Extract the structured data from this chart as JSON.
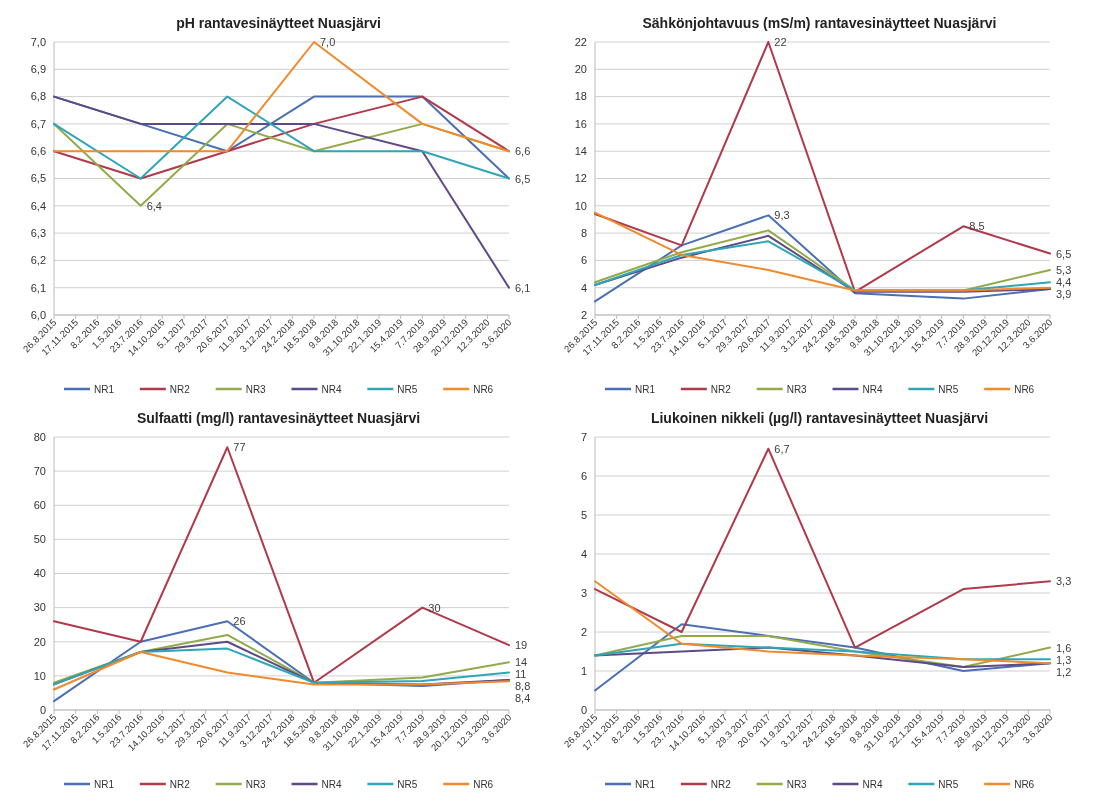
{
  "chart_data": [
    {
      "type": "line",
      "title": "pH rantavesinäytteet Nuasjärvi",
      "x": [
        "2015-08-26",
        "2016-07-23",
        "2017-06-20",
        "2018-05-18",
        "2019-07-07",
        "2020-06-03"
      ],
      "xlim": [
        "2015-08-26",
        "2020-06-03"
      ],
      "xticks": [
        {
          "value": "2015-08-26",
          "label": "26.8.2015"
        },
        {
          "value": "2015-11-17",
          "label": "17.11.2015"
        },
        {
          "value": "2016-02-08",
          "label": "8.2.2016"
        },
        {
          "value": "2016-05-01",
          "label": "1.5.2016"
        },
        {
          "value": "2016-07-23",
          "label": "23.7.2016"
        },
        {
          "value": "2016-10-14",
          "label": "14.10.2016"
        },
        {
          "value": "2017-01-05",
          "label": "5.1.2017"
        },
        {
          "value": "2017-03-29",
          "label": "29.3.2017"
        },
        {
          "value": "2017-06-20",
          "label": "20.6.2017"
        },
        {
          "value": "2017-09-11",
          "label": "11.9.2017"
        },
        {
          "value": "2017-12-03",
          "label": "3.12.2017"
        },
        {
          "value": "2018-02-24",
          "label": "24.2.2018"
        },
        {
          "value": "2018-05-18",
          "label": "18.5.2018"
        },
        {
          "value": "2018-08-09",
          "label": "9.8.2018"
        },
        {
          "value": "2018-10-31",
          "label": "31.10.2018"
        },
        {
          "value": "2019-01-22",
          "label": "22.1.2019"
        },
        {
          "value": "2019-04-15",
          "label": "15.4.2019"
        },
        {
          "value": "2019-07-07",
          "label": "7.7.2019"
        },
        {
          "value": "2019-09-28",
          "label": "28.9.2019"
        },
        {
          "value": "2019-12-20",
          "label": "20.12.2019"
        },
        {
          "value": "2020-03-12",
          "label": "12.3.2020"
        },
        {
          "value": "2020-06-03",
          "label": "3.6.2020"
        }
      ],
      "ylim": [
        6.0,
        7.0
      ],
      "yticks": [
        {
          "value": 6.0,
          "label": "6,0"
        },
        {
          "value": 6.1,
          "label": "6,1"
        },
        {
          "value": 6.2,
          "label": "6,2"
        },
        {
          "value": 6.3,
          "label": "6,3"
        },
        {
          "value": 6.4,
          "label": "6,4"
        },
        {
          "value": 6.5,
          "label": "6,5"
        },
        {
          "value": 6.6,
          "label": "6,6"
        },
        {
          "value": 6.7,
          "label": "6,7"
        },
        {
          "value": 6.8,
          "label": "6,8"
        },
        {
          "value": 6.9,
          "label": "6,9"
        },
        {
          "value": 7.0,
          "label": "7,0"
        }
      ],
      "grid": "y",
      "legend": "bottom",
      "marker": "none",
      "series": [
        {
          "name": "NR1",
          "color": "#4a6fb5",
          "values": [
            6.8,
            6.7,
            6.6,
            6.8,
            6.8,
            6.5
          ],
          "value_labels": [
            null,
            null,
            null,
            null,
            null,
            "6,5"
          ]
        },
        {
          "name": "NR2",
          "color": "#b0394a",
          "values": [
            6.6,
            6.5,
            6.6,
            6.7,
            6.8,
            6.6
          ],
          "value_labels": [
            null,
            null,
            null,
            null,
            null,
            "6,6"
          ]
        },
        {
          "name": "NR3",
          "color": "#93aa4a",
          "values": [
            6.7,
            6.4,
            6.7,
            6.6,
            6.7,
            6.6
          ],
          "value_labels": [
            null,
            "6,4",
            null,
            null,
            null,
            null
          ]
        },
        {
          "name": "NR4",
          "color": "#5e4a86",
          "values": [
            6.8,
            6.7,
            6.7,
            6.7,
            6.6,
            6.1
          ],
          "value_labels": [
            null,
            null,
            null,
            null,
            null,
            "6,1"
          ]
        },
        {
          "name": "NR5",
          "color": "#2fa6b8",
          "values": [
            6.7,
            6.5,
            6.8,
            6.6,
            6.6,
            6.5
          ]
        },
        {
          "name": "NR6",
          "color": "#f08a2c",
          "values": [
            6.6,
            6.6,
            6.6,
            7.0,
            6.7,
            6.6
          ],
          "value_labels": [
            null,
            null,
            null,
            "7,0",
            null,
            null
          ]
        }
      ]
    },
    {
      "type": "line",
      "title": "Sähkönjohtavuus (mS/m) rantavesinäytteet Nuasjärvi",
      "x": [
        "2015-08-26",
        "2016-07-23",
        "2017-06-20",
        "2018-05-18",
        "2019-07-07",
        "2020-06-03"
      ],
      "xlim": [
        "2015-08-26",
        "2020-06-03"
      ],
      "xticks": [
        {
          "value": "2015-08-26",
          "label": "26.8.2015"
        },
        {
          "value": "2015-11-17",
          "label": "17.11.2015"
        },
        {
          "value": "2016-02-08",
          "label": "8.2.2016"
        },
        {
          "value": "2016-05-01",
          "label": "1.5.2016"
        },
        {
          "value": "2016-07-23",
          "label": "23.7.2016"
        },
        {
          "value": "2016-10-14",
          "label": "14.10.2016"
        },
        {
          "value": "2017-01-05",
          "label": "5.1.2017"
        },
        {
          "value": "2017-03-29",
          "label": "29.3.2017"
        },
        {
          "value": "2017-06-20",
          "label": "20.6.2017"
        },
        {
          "value": "2017-09-11",
          "label": "11.9.2017"
        },
        {
          "value": "2017-12-03",
          "label": "3.12.2017"
        },
        {
          "value": "2018-02-24",
          "label": "24.2.2018"
        },
        {
          "value": "2018-05-18",
          "label": "18.5.2018"
        },
        {
          "value": "2018-08-09",
          "label": "9.8.2018"
        },
        {
          "value": "2018-10-31",
          "label": "31.10.2018"
        },
        {
          "value": "2019-01-22",
          "label": "22.1.2019"
        },
        {
          "value": "2019-04-15",
          "label": "15.4.2019"
        },
        {
          "value": "2019-07-07",
          "label": "7.7.2019"
        },
        {
          "value": "2019-09-28",
          "label": "28.9.2019"
        },
        {
          "value": "2019-12-20",
          "label": "20.12.2019"
        },
        {
          "value": "2020-03-12",
          "label": "12.3.2020"
        },
        {
          "value": "2020-06-03",
          "label": "3.6.2020"
        }
      ],
      "ylim": [
        2,
        22
      ],
      "yticks": [
        2,
        4,
        6,
        8,
        10,
        12,
        14,
        16,
        18,
        20,
        22
      ],
      "grid": "y",
      "legend": "bottom",
      "marker": "none",
      "series": [
        {
          "name": "NR1",
          "color": "#4a6fb5",
          "values": [
            3.0,
            7.1,
            9.3,
            3.6,
            3.2,
            3.9
          ],
          "value_labels": [
            null,
            null,
            "9,3",
            null,
            null,
            "3,9"
          ]
        },
        {
          "name": "NR2",
          "color": "#b0394a",
          "values": [
            9.4,
            7.1,
            22,
            3.7,
            8.5,
            6.5
          ],
          "value_labels": [
            null,
            null,
            "22",
            null,
            "8,5",
            "6,5"
          ]
        },
        {
          "name": "NR3",
          "color": "#93aa4a",
          "values": [
            4.4,
            6.6,
            8.2,
            3.8,
            3.8,
            5.3
          ],
          "value_labels": [
            null,
            null,
            null,
            null,
            null,
            "5,3"
          ]
        },
        {
          "name": "NR4",
          "color": "#5e4a86",
          "values": [
            4.2,
            6.2,
            7.8,
            3.7,
            3.7,
            3.9
          ]
        },
        {
          "name": "NR5",
          "color": "#2fa6b8",
          "values": [
            4.2,
            6.4,
            7.4,
            3.8,
            3.8,
            4.4
          ],
          "value_labels": [
            null,
            null,
            null,
            null,
            null,
            "4,4"
          ]
        },
        {
          "name": "NR6",
          "color": "#f08a2c",
          "values": [
            9.5,
            6.4,
            5.3,
            3.8,
            3.8,
            4.0
          ]
        }
      ]
    },
    {
      "type": "line",
      "title": "Sulfaatti (mg/l) rantavesinäytteet Nuasjärvi",
      "x": [
        "2015-08-26",
        "2016-07-23",
        "2017-06-20",
        "2018-05-18",
        "2019-07-07",
        "2020-06-03"
      ],
      "xlim": [
        "2015-08-26",
        "2020-06-03"
      ],
      "xticks": [
        {
          "value": "2015-08-26",
          "label": "26.8.2015"
        },
        {
          "value": "2015-11-17",
          "label": "17.11.2015"
        },
        {
          "value": "2016-02-08",
          "label": "8.2.2016"
        },
        {
          "value": "2016-05-01",
          "label": "1.5.2016"
        },
        {
          "value": "2016-07-23",
          "label": "23.7.2016"
        },
        {
          "value": "2016-10-14",
          "label": "14.10.2016"
        },
        {
          "value": "2017-01-05",
          "label": "5.1.2017"
        },
        {
          "value": "2017-03-29",
          "label": "29.3.2017"
        },
        {
          "value": "2017-06-20",
          "label": "20.6.2017"
        },
        {
          "value": "2017-09-11",
          "label": "11.9.2017"
        },
        {
          "value": "2017-12-03",
          "label": "3.12.2017"
        },
        {
          "value": "2018-02-24",
          "label": "24.2.2018"
        },
        {
          "value": "2018-05-18",
          "label": "18.5.2018"
        },
        {
          "value": "2018-08-09",
          "label": "9.8.2018"
        },
        {
          "value": "2018-10-31",
          "label": "31.10.2018"
        },
        {
          "value": "2019-01-22",
          "label": "22.1.2019"
        },
        {
          "value": "2019-04-15",
          "label": "15.4.2019"
        },
        {
          "value": "2019-07-07",
          "label": "7.7.2019"
        },
        {
          "value": "2019-09-28",
          "label": "28.9.2019"
        },
        {
          "value": "2019-12-20",
          "label": "20.12.2019"
        },
        {
          "value": "2020-03-12",
          "label": "12.3.2020"
        },
        {
          "value": "2020-06-03",
          "label": "3.6.2020"
        }
      ],
      "ylim": [
        0,
        80
      ],
      "yticks": [
        0,
        10,
        20,
        30,
        40,
        50,
        60,
        70,
        80
      ],
      "grid": "y",
      "legend": "bottom",
      "marker": "none",
      "series": [
        {
          "name": "NR1",
          "color": "#4a6fb5",
          "values": [
            2.6,
            20,
            26,
            8,
            7,
            8.8
          ],
          "value_labels": [
            null,
            null,
            "26",
            null,
            null,
            null
          ]
        },
        {
          "name": "NR2",
          "color": "#b0394a",
          "values": [
            26,
            20,
            77,
            8,
            30,
            19
          ],
          "value_labels": [
            null,
            null,
            "77",
            null,
            "30",
            "19"
          ]
        },
        {
          "name": "NR3",
          "color": "#93aa4a",
          "values": [
            8,
            17,
            22,
            8,
            9.5,
            14
          ],
          "value_labels": [
            null,
            null,
            null,
            null,
            null,
            "14"
          ]
        },
        {
          "name": "NR4",
          "color": "#5e4a86",
          "values": [
            7.5,
            17,
            20,
            8,
            7.5,
            8.8
          ],
          "value_labels": [
            null,
            null,
            null,
            null,
            null,
            "8,8"
          ]
        },
        {
          "name": "NR5",
          "color": "#2fa6b8",
          "values": [
            7.5,
            17,
            18,
            8,
            8.5,
            11
          ],
          "value_labels": [
            null,
            null,
            null,
            null,
            null,
            "11"
          ]
        },
        {
          "name": "NR6",
          "color": "#f08a2c",
          "values": [
            6,
            17,
            11,
            7.5,
            7.5,
            8.4
          ],
          "value_labels": [
            null,
            null,
            null,
            null,
            null,
            "8,4"
          ]
        }
      ]
    },
    {
      "type": "line",
      "title": "Liukoinen nikkeli (µg/l) rantavesinäytteet Nuasjärvi",
      "x": [
        "2015-08-26",
        "2016-07-23",
        "2017-06-20",
        "2018-05-18",
        "2019-07-07",
        "2020-06-03"
      ],
      "xlim": [
        "2015-08-26",
        "2020-06-03"
      ],
      "xticks": [
        {
          "value": "2015-08-26",
          "label": "26.8.2015"
        },
        {
          "value": "2015-11-17",
          "label": "17.11.2015"
        },
        {
          "value": "2016-02-08",
          "label": "8.2.2016"
        },
        {
          "value": "2016-05-01",
          "label": "1.5.2016"
        },
        {
          "value": "2016-07-23",
          "label": "23.7.2016"
        },
        {
          "value": "2016-10-14",
          "label": "14.10.2016"
        },
        {
          "value": "2017-01-05",
          "label": "5.1.2017"
        },
        {
          "value": "2017-03-29",
          "label": "29.3.2017"
        },
        {
          "value": "2017-06-20",
          "label": "20.6.2017"
        },
        {
          "value": "2017-09-11",
          "label": "11.9.2017"
        },
        {
          "value": "2017-12-03",
          "label": "3.12.2017"
        },
        {
          "value": "2018-02-24",
          "label": "24.2.2018"
        },
        {
          "value": "2018-05-18",
          "label": "18.5.2018"
        },
        {
          "value": "2018-08-09",
          "label": "9.8.2018"
        },
        {
          "value": "2018-10-31",
          "label": "31.10.2018"
        },
        {
          "value": "2019-01-22",
          "label": "22.1.2019"
        },
        {
          "value": "2019-04-15",
          "label": "15.4.2019"
        },
        {
          "value": "2019-07-07",
          "label": "7.7.2019"
        },
        {
          "value": "2019-09-28",
          "label": "28.9.2019"
        },
        {
          "value": "2019-12-20",
          "label": "20.12.2019"
        },
        {
          "value": "2020-03-12",
          "label": "12.3.2020"
        },
        {
          "value": "2020-06-03",
          "label": "3.6.2020"
        }
      ],
      "ylim": [
        0,
        7
      ],
      "yticks": [
        0,
        1,
        2,
        3,
        4,
        5,
        6,
        7
      ],
      "grid": "y",
      "legend": "bottom",
      "marker": "none",
      "series": [
        {
          "name": "NR1",
          "color": "#4a6fb5",
          "values": [
            0.5,
            2.2,
            1.9,
            1.6,
            1.0,
            1.2
          ],
          "value_labels": [
            null,
            null,
            null,
            null,
            null,
            "1,2"
          ]
        },
        {
          "name": "NR2",
          "color": "#b0394a",
          "values": [
            3.1,
            2.0,
            6.7,
            1.6,
            3.1,
            3.3
          ],
          "value_labels": [
            null,
            null,
            "6,7",
            null,
            null,
            "3,3"
          ]
        },
        {
          "name": "NR3",
          "color": "#93aa4a",
          "values": [
            1.4,
            1.9,
            1.9,
            1.5,
            1.1,
            1.6
          ],
          "value_labels": [
            null,
            null,
            null,
            null,
            null,
            "1,6"
          ]
        },
        {
          "name": "NR4",
          "color": "#5e4a86",
          "values": [
            1.4,
            1.5,
            1.6,
            1.4,
            1.1,
            1.2
          ]
        },
        {
          "name": "NR5",
          "color": "#2fa6b8",
          "values": [
            1.4,
            1.7,
            1.6,
            1.5,
            1.3,
            1.3
          ],
          "value_labels": [
            null,
            null,
            null,
            null,
            null,
            "1,3"
          ]
        },
        {
          "name": "NR6",
          "color": "#f08a2c",
          "values": [
            3.3,
            1.7,
            1.5,
            1.4,
            1.3,
            1.2
          ]
        }
      ]
    }
  ]
}
